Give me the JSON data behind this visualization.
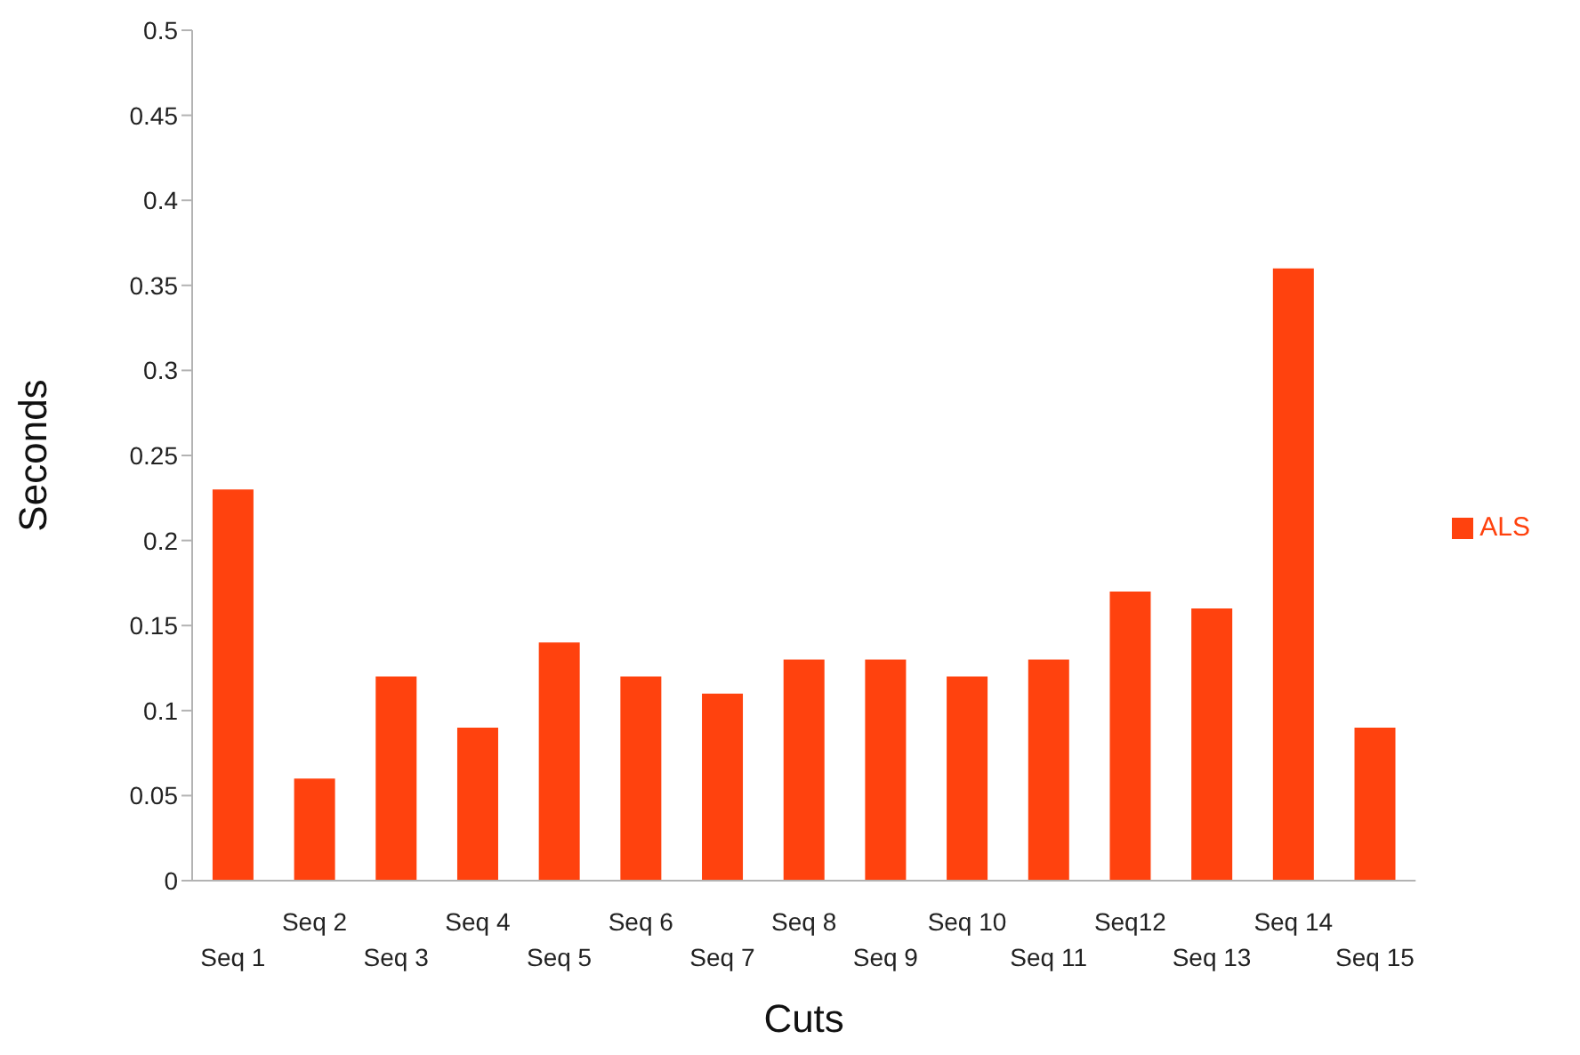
{
  "chart_data": {
    "type": "bar",
    "xlabel": "Cuts",
    "ylabel": "Seconds",
    "categories": [
      "Seq 1",
      "Seq 2",
      "Seq 3",
      "Seq 4",
      "Seq 5",
      "Seq 6",
      "Seq 7",
      "Seq 8",
      "Seq 9",
      "Seq 10",
      "Seq 11",
      "Seq12",
      "Seq 13",
      "Seq 14",
      "Seq 15"
    ],
    "series": [
      {
        "name": "ALS",
        "color": "#ff420e",
        "values": [
          0.23,
          0.06,
          0.12,
          0.09,
          0.14,
          0.12,
          0.11,
          0.13,
          0.13,
          0.12,
          0.13,
          0.17,
          0.16,
          0.36,
          0.09
        ]
      }
    ],
    "ylim": [
      0,
      0.5
    ],
    "yticks": [
      0,
      0.05,
      0.1,
      0.15,
      0.2,
      0.25,
      0.3,
      0.35,
      0.4,
      0.45,
      0.5
    ],
    "grid": false,
    "legend": "right"
  }
}
